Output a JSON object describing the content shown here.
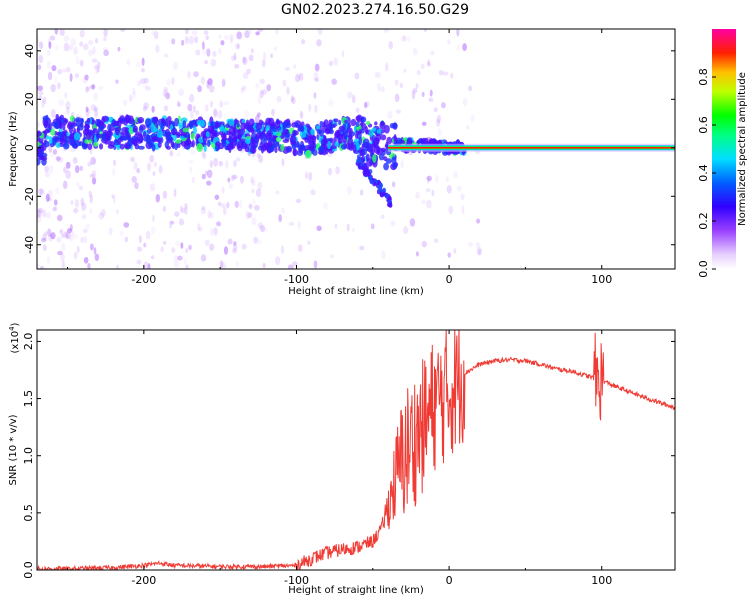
{
  "title": "GN02.2023.274.16.50.G29",
  "colors": {
    "snr_line": "#f03a34",
    "axis": "#000000",
    "background": "#ffffff"
  },
  "chart_data": [
    {
      "type": "heatmap",
      "xlabel": "Height of straight line (km)",
      "ylabel": "Frequency (Hz)",
      "xlim": [
        -270,
        148
      ],
      "ylim": [
        -50,
        49
      ],
      "xticks": [
        -200,
        -100,
        0,
        100
      ],
      "yticks": [
        -40,
        -20,
        0,
        20,
        40
      ],
      "colorbar": {
        "label": "Normalized spectral amplitude",
        "range": [
          0,
          1
        ],
        "ticks": [
          0.0,
          0.2,
          0.4,
          0.6,
          0.8
        ]
      },
      "ridge": [
        {
          "x": -265,
          "y": 7
        },
        {
          "x": -220,
          "y": 6
        },
        {
          "x": -180,
          "y": 6
        },
        {
          "x": -140,
          "y": 5
        },
        {
          "x": -110,
          "y": 5
        },
        {
          "x": -90,
          "y": 3
        },
        {
          "x": -70,
          "y": 6
        },
        {
          "x": -55,
          "y": 3
        },
        {
          "x": -40,
          "y": 1
        },
        {
          "x": -20,
          "y": 1
        },
        {
          "x": 0,
          "y": 0
        },
        {
          "x": 148,
          "y": 0
        }
      ]
    },
    {
      "type": "line",
      "xlabel": "Height of straight line (km)",
      "ylabel": "SNR (10 * v/v)",
      "scale_note": "(x10",
      "scale_exp": "4",
      "scale_close": ")",
      "xlim": [
        -270,
        148
      ],
      "ylim": [
        0,
        2.1
      ],
      "xticks": [
        -200,
        -100,
        0,
        100
      ],
      "yticks": [
        "0.0",
        "0.5",
        "1.0",
        "1.5",
        "2.0"
      ],
      "series": [
        {
          "x": [
            -270,
            -250,
            -220,
            -200,
            -190,
            -180,
            -150,
            -120,
            -100,
            -90,
            -80,
            -70,
            -60,
            -50,
            -45,
            -40,
            -35,
            -30,
            -25,
            -20,
            -15,
            -10,
            -5,
            0,
            10,
            20,
            30,
            40,
            50,
            60,
            70,
            80,
            90,
            95,
            100,
            110,
            120,
            130,
            148
          ],
          "y": [
            0.01,
            0.01,
            0.02,
            0.04,
            0.06,
            0.04,
            0.03,
            0.03,
            0.04,
            0.1,
            0.15,
            0.18,
            0.2,
            0.25,
            0.35,
            0.55,
            0.8,
            1.0,
            1.1,
            1.2,
            1.3,
            1.45,
            1.5,
            1.55,
            1.72,
            1.8,
            1.83,
            1.84,
            1.83,
            1.8,
            1.76,
            1.74,
            1.7,
            1.68,
            1.66,
            1.6,
            1.55,
            1.5,
            1.42
          ]
        }
      ]
    }
  ]
}
